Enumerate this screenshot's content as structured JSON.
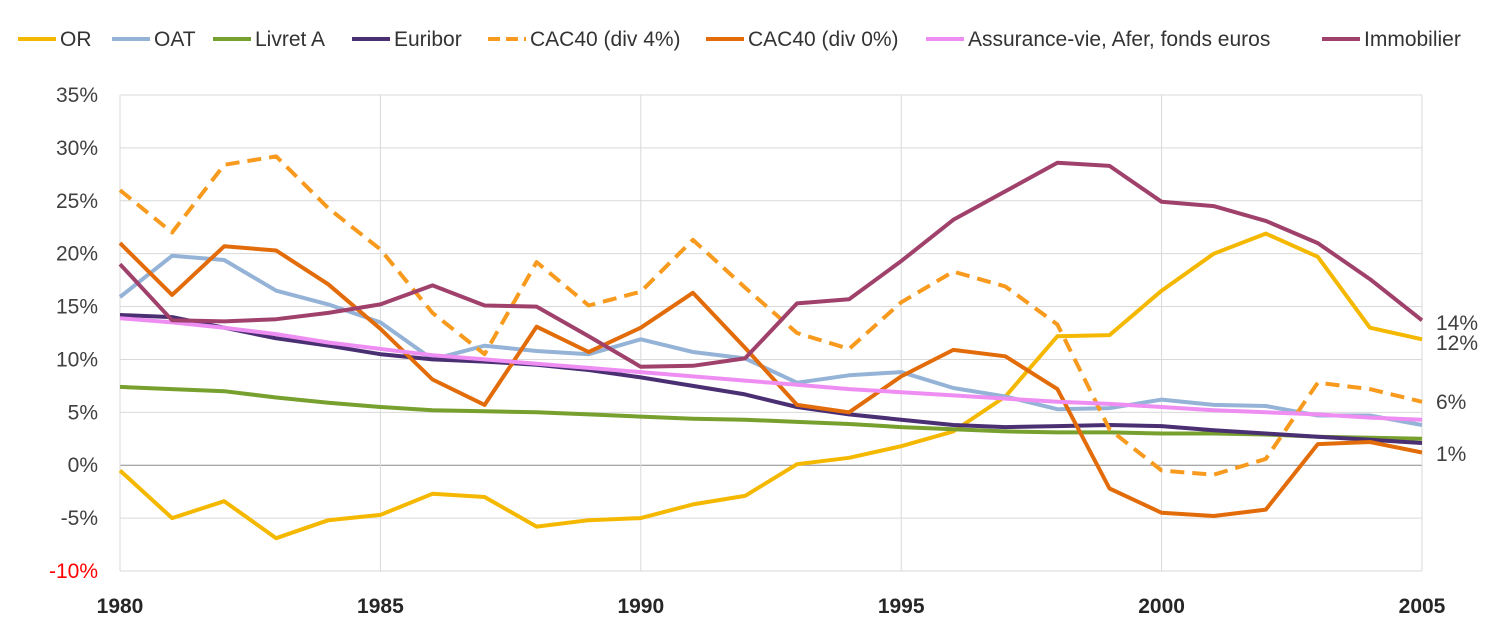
{
  "chart_data": {
    "type": "line",
    "title": "",
    "xlabel": "",
    "ylabel": "",
    "x": [
      1980,
      1981,
      1982,
      1983,
      1984,
      1985,
      1986,
      1987,
      1988,
      1989,
      1990,
      1991,
      1992,
      1993,
      1994,
      1995,
      1996,
      1997,
      1998,
      1999,
      2000,
      2001,
      2002,
      2003,
      2004,
      2005
    ],
    "x_ticks": [
      "1980",
      "1985",
      "1990",
      "1995",
      "2000",
      "2005"
    ],
    "x_tick_values": [
      1980,
      1985,
      1990,
      1995,
      2000,
      2005
    ],
    "xlim": [
      1980,
      2005
    ],
    "ylim": [
      -10,
      35
    ],
    "y_ticks": [
      -10,
      -5,
      0,
      5,
      10,
      15,
      20,
      25,
      30,
      35
    ],
    "y_tick_labels": [
      "-10%",
      "-5%",
      "0%",
      "5%",
      "10%",
      "15%",
      "20%",
      "25%",
      "30%",
      "35%"
    ],
    "negative_limit_label_color": "#ff0000",
    "grid": "both",
    "legend_position": "top",
    "series": [
      {
        "name": "OR",
        "color": "#f5b800",
        "dash": false,
        "values": [
          -0.5,
          -5.0,
          -3.4,
          -6.9,
          -5.2,
          -4.7,
          -2.7,
          -3.0,
          -5.8,
          -5.2,
          -5.0,
          -3.7,
          -2.9,
          0.1,
          0.7,
          1.8,
          3.2,
          6.5,
          12.2,
          12.3,
          16.5,
          20.0,
          21.9,
          19.7,
          13.0,
          11.9
        ]
      },
      {
        "name": "OAT",
        "color": "#95b3d7",
        "dash": false,
        "values": [
          15.9,
          19.8,
          19.4,
          16.5,
          15.2,
          13.5,
          10.0,
          11.3,
          10.8,
          10.5,
          11.9,
          10.7,
          10.1,
          7.8,
          8.5,
          8.8,
          7.3,
          6.5,
          5.3,
          5.4,
          6.2,
          5.7,
          5.6,
          4.7,
          4.7,
          3.8
        ]
      },
      {
        "name": "Livret A",
        "color": "#77a02f",
        "dash": false,
        "values": [
          7.4,
          7.2,
          7.0,
          6.4,
          5.9,
          5.5,
          5.2,
          5.1,
          5.0,
          4.8,
          4.6,
          4.4,
          4.3,
          4.1,
          3.9,
          3.6,
          3.4,
          3.2,
          3.1,
          3.1,
          3.0,
          3.0,
          2.9,
          2.7,
          2.6,
          2.5
        ]
      },
      {
        "name": "Euribor",
        "color": "#4a2f73",
        "dash": false,
        "values": [
          14.2,
          14.0,
          13.0,
          12.0,
          11.3,
          10.5,
          10.0,
          9.8,
          9.5,
          9.0,
          8.3,
          7.5,
          6.7,
          5.5,
          4.8,
          4.3,
          3.8,
          3.6,
          3.7,
          3.8,
          3.7,
          3.3,
          3.0,
          2.7,
          2.4,
          2.1
        ]
      },
      {
        "name": "CAC40 (div 4%)",
        "color": "#f79a1e",
        "dash": true,
        "values": [
          26.0,
          22.0,
          28.4,
          29.2,
          24.3,
          20.4,
          14.4,
          10.5,
          19.2,
          15.1,
          16.4,
          21.3,
          16.8,
          12.5,
          11.0,
          15.4,
          18.3,
          16.9,
          13.3,
          3.4,
          -0.5,
          -0.9,
          0.6,
          7.8,
          7.2,
          6.0
        ]
      },
      {
        "name": "CAC40 (div 0%)",
        "color": "#e36c0a",
        "dash": false,
        "values": [
          21.0,
          16.1,
          20.7,
          20.3,
          17.1,
          12.9,
          8.1,
          5.7,
          13.1,
          10.7,
          13.0,
          16.3,
          11.1,
          5.7,
          5.0,
          8.4,
          10.9,
          10.3,
          7.2,
          -2.2,
          -4.5,
          -4.8,
          -4.2,
          2.0,
          2.2,
          1.2
        ]
      },
      {
        "name": "Assurance-vie, Afer, fonds euros",
        "color": "#ef8ef2",
        "dash": false,
        "values": [
          13.9,
          13.5,
          13.0,
          12.4,
          11.6,
          11.0,
          10.4,
          10.0,
          9.6,
          9.2,
          8.8,
          8.4,
          8.0,
          7.6,
          7.2,
          6.9,
          6.6,
          6.3,
          6.0,
          5.8,
          5.5,
          5.2,
          5.0,
          4.8,
          4.5,
          4.3
        ]
      },
      {
        "name": "Immobilier",
        "color": "#a0416b",
        "dash": false,
        "values": [
          19.0,
          13.7,
          13.6,
          13.8,
          14.4,
          15.2,
          17.0,
          15.1,
          15.0,
          12.2,
          9.3,
          9.4,
          10.1,
          15.3,
          15.7,
          19.3,
          23.2,
          25.9,
          28.6,
          28.3,
          24.9,
          24.5,
          23.1,
          21.0,
          17.6,
          13.7
        ]
      }
    ],
    "annotations": [
      "14%",
      "12%",
      "6%",
      "1%"
    ],
    "annotation_values": [
      14,
      12,
      6,
      1
    ]
  }
}
